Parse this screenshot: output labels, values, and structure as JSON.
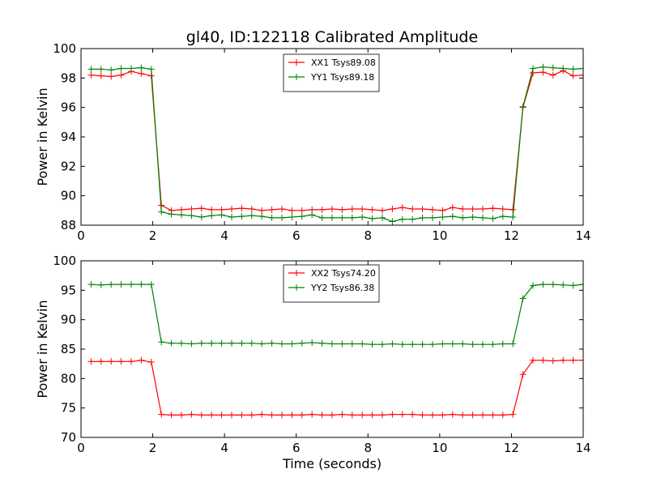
{
  "chart_data": [
    {
      "type": "line",
      "title": "gl40, ID:122118 Calibrated Amplitude",
      "xlabel": "",
      "ylabel": "Power in Kelvin",
      "xlim": [
        0,
        14
      ],
      "ylim": [
        88,
        100
      ],
      "xticks": [
        "0",
        "2",
        "4",
        "6",
        "8",
        "10",
        "12",
        "14"
      ],
      "yticks": [
        "88",
        "90",
        "92",
        "94",
        "96",
        "98",
        "100"
      ],
      "grid": false,
      "legend": "top-center",
      "series": [
        {
          "name": "XX1 Tsys89.08",
          "color": "#ff0000",
          "x": [
            0.28,
            0.56,
            0.84,
            1.12,
            1.4,
            1.68,
            1.96,
            2.24,
            2.52,
            2.8,
            3.08,
            3.36,
            3.64,
            3.92,
            4.2,
            4.48,
            4.76,
            5.04,
            5.32,
            5.6,
            5.88,
            6.16,
            6.44,
            6.72,
            7.0,
            7.28,
            7.56,
            7.84,
            8.12,
            8.4,
            8.68,
            8.96,
            9.24,
            9.52,
            9.8,
            10.08,
            10.36,
            10.64,
            10.92,
            11.2,
            11.48,
            11.76,
            12.04,
            12.32,
            12.6,
            12.88,
            13.16,
            13.44,
            13.72,
            14.0
          ],
          "y": [
            98.2,
            98.15,
            98.1,
            98.2,
            98.45,
            98.3,
            98.15,
            89.35,
            89.0,
            89.05,
            89.1,
            89.15,
            89.05,
            89.05,
            89.1,
            89.15,
            89.1,
            89.0,
            89.05,
            89.1,
            89.0,
            89.0,
            89.05,
            89.05,
            89.1,
            89.05,
            89.1,
            89.1,
            89.05,
            89.0,
            89.1,
            89.2,
            89.1,
            89.1,
            89.05,
            89.0,
            89.2,
            89.1,
            89.1,
            89.1,
            89.15,
            89.1,
            89.05,
            96.0,
            98.35,
            98.4,
            98.2,
            98.5,
            98.15,
            98.2
          ]
        },
        {
          "name": "YY1 Tsys89.18",
          "color": "#008000",
          "x": [
            0.28,
            0.56,
            0.84,
            1.12,
            1.4,
            1.68,
            1.96,
            2.24,
            2.52,
            2.8,
            3.08,
            3.36,
            3.64,
            3.92,
            4.2,
            4.48,
            4.76,
            5.04,
            5.32,
            5.6,
            5.88,
            6.16,
            6.44,
            6.72,
            7.0,
            7.28,
            7.56,
            7.84,
            8.12,
            8.4,
            8.68,
            8.96,
            9.24,
            9.52,
            9.8,
            10.08,
            10.36,
            10.64,
            10.92,
            11.2,
            11.48,
            11.76,
            12.04,
            12.32,
            12.6,
            12.88,
            13.16,
            13.44,
            13.72,
            14.0
          ],
          "y": [
            98.6,
            98.6,
            98.55,
            98.65,
            98.65,
            98.7,
            98.6,
            88.9,
            88.75,
            88.7,
            88.65,
            88.55,
            88.65,
            88.7,
            88.55,
            88.6,
            88.65,
            88.6,
            88.5,
            88.5,
            88.55,
            88.6,
            88.7,
            88.5,
            88.5,
            88.5,
            88.5,
            88.55,
            88.45,
            88.5,
            88.25,
            88.4,
            88.4,
            88.5,
            88.5,
            88.55,
            88.6,
            88.5,
            88.55,
            88.5,
            88.45,
            88.6,
            88.55,
            96.05,
            98.65,
            98.75,
            98.7,
            98.65,
            98.6,
            98.65
          ]
        }
      ]
    },
    {
      "type": "line",
      "title": "",
      "xlabel": "Time (seconds)",
      "ylabel": "Power in Kelvin",
      "xlim": [
        0,
        14
      ],
      "ylim": [
        70,
        100
      ],
      "xticks": [
        "0",
        "2",
        "4",
        "6",
        "8",
        "10",
        "12",
        "14"
      ],
      "yticks": [
        "70",
        "75",
        "80",
        "85",
        "90",
        "95",
        "100"
      ],
      "grid": false,
      "legend": "top-center",
      "series": [
        {
          "name": "XX2 Tsys74.20",
          "color": "#ff0000",
          "x": [
            0.28,
            0.56,
            0.84,
            1.12,
            1.4,
            1.68,
            1.96,
            2.24,
            2.52,
            2.8,
            3.08,
            3.36,
            3.64,
            3.92,
            4.2,
            4.48,
            4.76,
            5.04,
            5.32,
            5.6,
            5.88,
            6.16,
            6.44,
            6.72,
            7.0,
            7.28,
            7.56,
            7.84,
            8.12,
            8.4,
            8.68,
            8.96,
            9.24,
            9.52,
            9.8,
            10.08,
            10.36,
            10.64,
            10.92,
            11.2,
            11.48,
            11.76,
            12.04,
            12.32,
            12.6,
            12.88,
            13.16,
            13.44,
            13.72,
            14.0
          ],
          "y": [
            82.9,
            82.9,
            82.9,
            82.9,
            82.9,
            83.1,
            82.8,
            73.9,
            73.8,
            73.8,
            73.9,
            73.8,
            73.8,
            73.8,
            73.8,
            73.8,
            73.8,
            73.9,
            73.8,
            73.8,
            73.8,
            73.8,
            73.9,
            73.8,
            73.8,
            73.9,
            73.8,
            73.8,
            73.8,
            73.8,
            73.9,
            73.9,
            73.9,
            73.8,
            73.8,
            73.8,
            73.9,
            73.8,
            73.8,
            73.8,
            73.8,
            73.8,
            73.9,
            80.7,
            83.1,
            83.1,
            83.0,
            83.1,
            83.1,
            83.1
          ]
        },
        {
          "name": "YY2 Tsys86.38",
          "color": "#008000",
          "x": [
            0.28,
            0.56,
            0.84,
            1.12,
            1.4,
            1.68,
            1.96,
            2.24,
            2.52,
            2.8,
            3.08,
            3.36,
            3.64,
            3.92,
            4.2,
            4.48,
            4.76,
            5.04,
            5.32,
            5.6,
            5.88,
            6.16,
            6.44,
            6.72,
            7.0,
            7.28,
            7.56,
            7.84,
            8.12,
            8.4,
            8.68,
            8.96,
            9.24,
            9.52,
            9.8,
            10.08,
            10.36,
            10.64,
            10.92,
            11.2,
            11.48,
            11.76,
            12.04,
            12.32,
            12.6,
            12.88,
            13.16,
            13.44,
            13.72,
            14.0
          ],
          "y": [
            96.0,
            95.9,
            96.0,
            96.0,
            96.0,
            96.0,
            96.0,
            86.2,
            86.0,
            86.0,
            85.9,
            86.0,
            86.0,
            86.0,
            86.0,
            86.0,
            86.0,
            85.9,
            86.0,
            85.9,
            85.9,
            86.0,
            86.1,
            86.0,
            85.9,
            85.9,
            85.9,
            85.9,
            85.8,
            85.8,
            85.9,
            85.8,
            85.8,
            85.8,
            85.8,
            85.9,
            85.9,
            85.9,
            85.8,
            85.8,
            85.8,
            85.9,
            85.9,
            93.6,
            95.8,
            96.0,
            96.0,
            95.9,
            95.8,
            96.0
          ]
        }
      ]
    }
  ]
}
